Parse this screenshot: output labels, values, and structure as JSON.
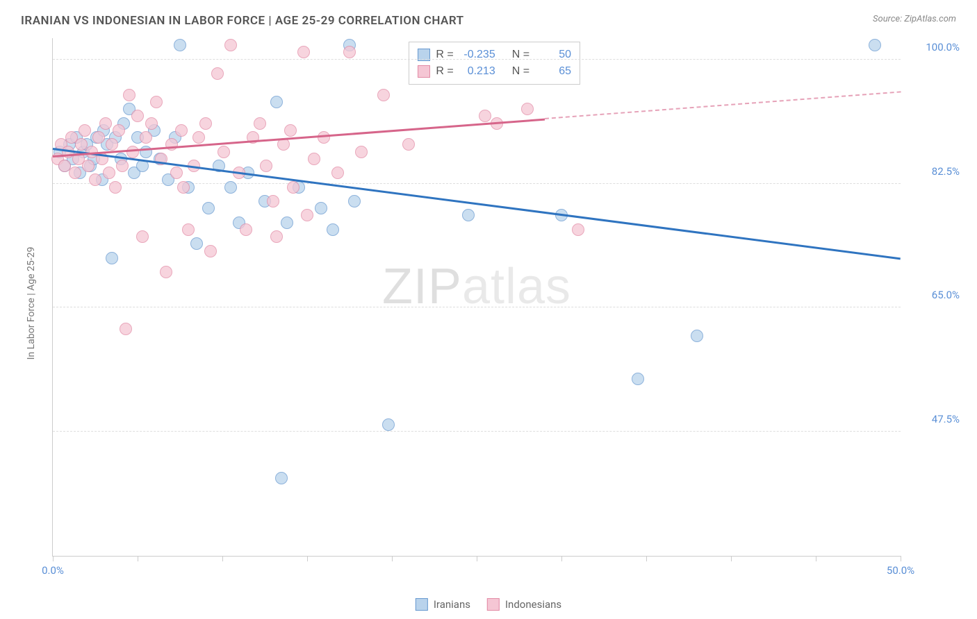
{
  "header": {
    "title": "IRANIAN VS INDONESIAN IN LABOR FORCE | AGE 25-29 CORRELATION CHART",
    "source": "Source: ZipAtlas.com"
  },
  "chart": {
    "type": "scatter",
    "ylabel": "In Labor Force | Age 25-29",
    "xlim": [
      0,
      50
    ],
    "ylim": [
      30,
      103
    ],
    "x_ticks": [
      0,
      5,
      10,
      15,
      20,
      25,
      30,
      35,
      40,
      45,
      50
    ],
    "x_tick_labels": {
      "0": "0.0%",
      "50": "50.0%"
    },
    "y_ticks": [
      47.5,
      65.0,
      82.5,
      100.0
    ],
    "y_tick_labels": [
      "47.5%",
      "65.0%",
      "82.5%",
      "100.0%"
    ],
    "grid_color": "#dddddd",
    "background_color": "#ffffff",
    "axis_color": "#cccccc",
    "tick_label_color": "#5a8fd6",
    "series": [
      {
        "name": "Iranians",
        "fill": "#b9d3ec",
        "stroke": "#6799d0",
        "opacity": 0.75,
        "marker_radius": 9,
        "R": "-0.235",
        "N": "50",
        "trend": {
          "x1": 0,
          "y1": 87.5,
          "x2": 50,
          "y2": 72.0,
          "color": "#2f74c0",
          "width": 2.5,
          "solid_until": 50
        },
        "points": [
          [
            0.4,
            87
          ],
          [
            0.7,
            85
          ],
          [
            1.0,
            88
          ],
          [
            1.2,
            86
          ],
          [
            1.4,
            89
          ],
          [
            1.6,
            84
          ],
          [
            1.8,
            87
          ],
          [
            2.0,
            88
          ],
          [
            2.2,
            85
          ],
          [
            2.4,
            86
          ],
          [
            2.6,
            89
          ],
          [
            2.9,
            83
          ],
          [
            3.0,
            90
          ],
          [
            3.2,
            88
          ],
          [
            3.5,
            72
          ],
          [
            3.7,
            89
          ],
          [
            4.0,
            86
          ],
          [
            4.2,
            91
          ],
          [
            4.5,
            93
          ],
          [
            4.8,
            84
          ],
          [
            5.0,
            89
          ],
          [
            5.3,
            85
          ],
          [
            5.5,
            87
          ],
          [
            6.0,
            90
          ],
          [
            6.3,
            86
          ],
          [
            6.8,
            83
          ],
          [
            7.2,
            89
          ],
          [
            7.5,
            102
          ],
          [
            8.0,
            82
          ],
          [
            8.5,
            74
          ],
          [
            9.2,
            79
          ],
          [
            9.8,
            85
          ],
          [
            10.5,
            82
          ],
          [
            11.0,
            77
          ],
          [
            11.5,
            84
          ],
          [
            12.5,
            80
          ],
          [
            13.2,
            94
          ],
          [
            13.5,
            41
          ],
          [
            13.8,
            77
          ],
          [
            14.5,
            82
          ],
          [
            15.8,
            79
          ],
          [
            16.5,
            76
          ],
          [
            17.5,
            102
          ],
          [
            17.8,
            80
          ],
          [
            19.8,
            48.5
          ],
          [
            24.5,
            78
          ],
          [
            30.0,
            78
          ],
          [
            34.5,
            55
          ],
          [
            38.0,
            61
          ],
          [
            48.5,
            102
          ]
        ]
      },
      {
        "name": "Indonesians",
        "fill": "#f5c6d4",
        "stroke": "#e28aa5",
        "opacity": 0.75,
        "marker_radius": 9,
        "R": "0.213",
        "N": "65",
        "trend": {
          "x1": 0,
          "y1": 86.5,
          "x2": 50,
          "y2": 95.5,
          "color": "#d6658a",
          "width": 2.5,
          "solid_until": 29
        },
        "points": [
          [
            0.3,
            86
          ],
          [
            0.5,
            88
          ],
          [
            0.7,
            85
          ],
          [
            0.9,
            87
          ],
          [
            1.1,
            89
          ],
          [
            1.3,
            84
          ],
          [
            1.5,
            86
          ],
          [
            1.7,
            88
          ],
          [
            1.9,
            90
          ],
          [
            2.1,
            85
          ],
          [
            2.3,
            87
          ],
          [
            2.5,
            83
          ],
          [
            2.7,
            89
          ],
          [
            2.9,
            86
          ],
          [
            3.1,
            91
          ],
          [
            3.3,
            84
          ],
          [
            3.5,
            88
          ],
          [
            3.7,
            82
          ],
          [
            3.9,
            90
          ],
          [
            4.1,
            85
          ],
          [
            4.3,
            62
          ],
          [
            4.5,
            95
          ],
          [
            4.7,
            87
          ],
          [
            5.0,
            92
          ],
          [
            5.3,
            75
          ],
          [
            5.5,
            89
          ],
          [
            5.8,
            91
          ],
          [
            6.1,
            94
          ],
          [
            6.4,
            86
          ],
          [
            6.7,
            70
          ],
          [
            7.0,
            88
          ],
          [
            7.3,
            84
          ],
          [
            7.6,
            90
          ],
          [
            7.7,
            82
          ],
          [
            8.0,
            76
          ],
          [
            8.3,
            85
          ],
          [
            8.6,
            89
          ],
          [
            9.0,
            91
          ],
          [
            9.3,
            73
          ],
          [
            9.7,
            98
          ],
          [
            10.1,
            87
          ],
          [
            10.5,
            102
          ],
          [
            11.0,
            84
          ],
          [
            11.4,
            76
          ],
          [
            11.8,
            89
          ],
          [
            12.2,
            91
          ],
          [
            12.6,
            85
          ],
          [
            13.0,
            80
          ],
          [
            13.2,
            75
          ],
          [
            13.6,
            88
          ],
          [
            14.0,
            90
          ],
          [
            14.2,
            82
          ],
          [
            14.8,
            101
          ],
          [
            15.0,
            78
          ],
          [
            15.4,
            86
          ],
          [
            16.0,
            89
          ],
          [
            16.8,
            84
          ],
          [
            17.5,
            101
          ],
          [
            18.2,
            87
          ],
          [
            19.5,
            95
          ],
          [
            21.0,
            88
          ],
          [
            25.5,
            92
          ],
          [
            26.2,
            91
          ],
          [
            28.0,
            93
          ],
          [
            31.0,
            76
          ]
        ]
      }
    ],
    "stats_legend": {
      "R_label": "R =",
      "N_label": "N ="
    },
    "bottom_legend": {
      "items": [
        "Iranians",
        "Indonesians"
      ]
    },
    "watermark": {
      "part1": "ZIP",
      "part2": "atlas"
    }
  }
}
